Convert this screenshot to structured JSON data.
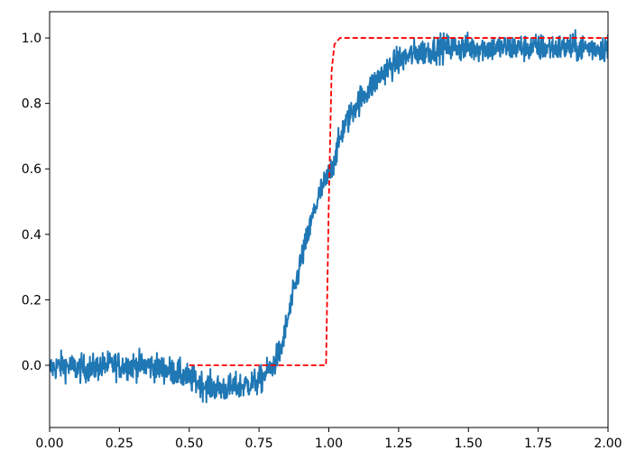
{
  "chart_data": {
    "type": "line",
    "title": "",
    "xlabel": "",
    "ylabel": "",
    "xlim": [
      0.0,
      2.0
    ],
    "ylim": [
      -0.19,
      1.08
    ],
    "xticks": [
      0.0,
      0.25,
      0.5,
      0.75,
      1.0,
      1.25,
      1.5,
      1.75,
      2.0
    ],
    "xtick_labels": [
      "0.00",
      "0.25",
      "0.50",
      "0.75",
      "1.00",
      "1.25",
      "1.50",
      "1.75",
      "2.00"
    ],
    "yticks": [
      0.0,
      0.2,
      0.4,
      0.6,
      0.8,
      1.0
    ],
    "ytick_labels": [
      "0.0",
      "0.2",
      "0.4",
      "0.6",
      "0.8",
      "1.0"
    ],
    "grid": false,
    "legend": "none",
    "series": [
      {
        "style": "solid",
        "color": "#1f77b4",
        "noise_amplitude": 0.03,
        "x": [
          0.0,
          0.05,
          0.1,
          0.15,
          0.2,
          0.25,
          0.3,
          0.35,
          0.4,
          0.45,
          0.5,
          0.55,
          0.6,
          0.65,
          0.7,
          0.75,
          0.8,
          0.83,
          0.85,
          0.88,
          0.9,
          0.93,
          0.95,
          0.97,
          1.0,
          1.02,
          1.05,
          1.1,
          1.15,
          1.2,
          1.25,
          1.3,
          1.35,
          1.4,
          1.5,
          1.6,
          1.7,
          1.8,
          1.9,
          2.0
        ],
        "y": [
          -0.01,
          0.0,
          -0.01,
          -0.01,
          0.0,
          0.0,
          0.0,
          0.0,
          -0.01,
          -0.02,
          -0.04,
          -0.06,
          -0.07,
          -0.07,
          -0.06,
          -0.05,
          0.0,
          0.05,
          0.13,
          0.24,
          0.32,
          0.41,
          0.48,
          0.53,
          0.58,
          0.63,
          0.72,
          0.8,
          0.85,
          0.9,
          0.93,
          0.95,
          0.96,
          0.97,
          0.97,
          0.97,
          0.97,
          0.97,
          0.97,
          0.97
        ]
      },
      {
        "style": "dashed",
        "color": "#ff0000",
        "x": [
          0.5,
          0.99,
          1.0,
          1.01,
          1.02,
          1.04,
          2.0
        ],
        "y": [
          0.0,
          0.0,
          0.5,
          0.9,
          0.98,
          1.0,
          1.0
        ]
      }
    ]
  }
}
